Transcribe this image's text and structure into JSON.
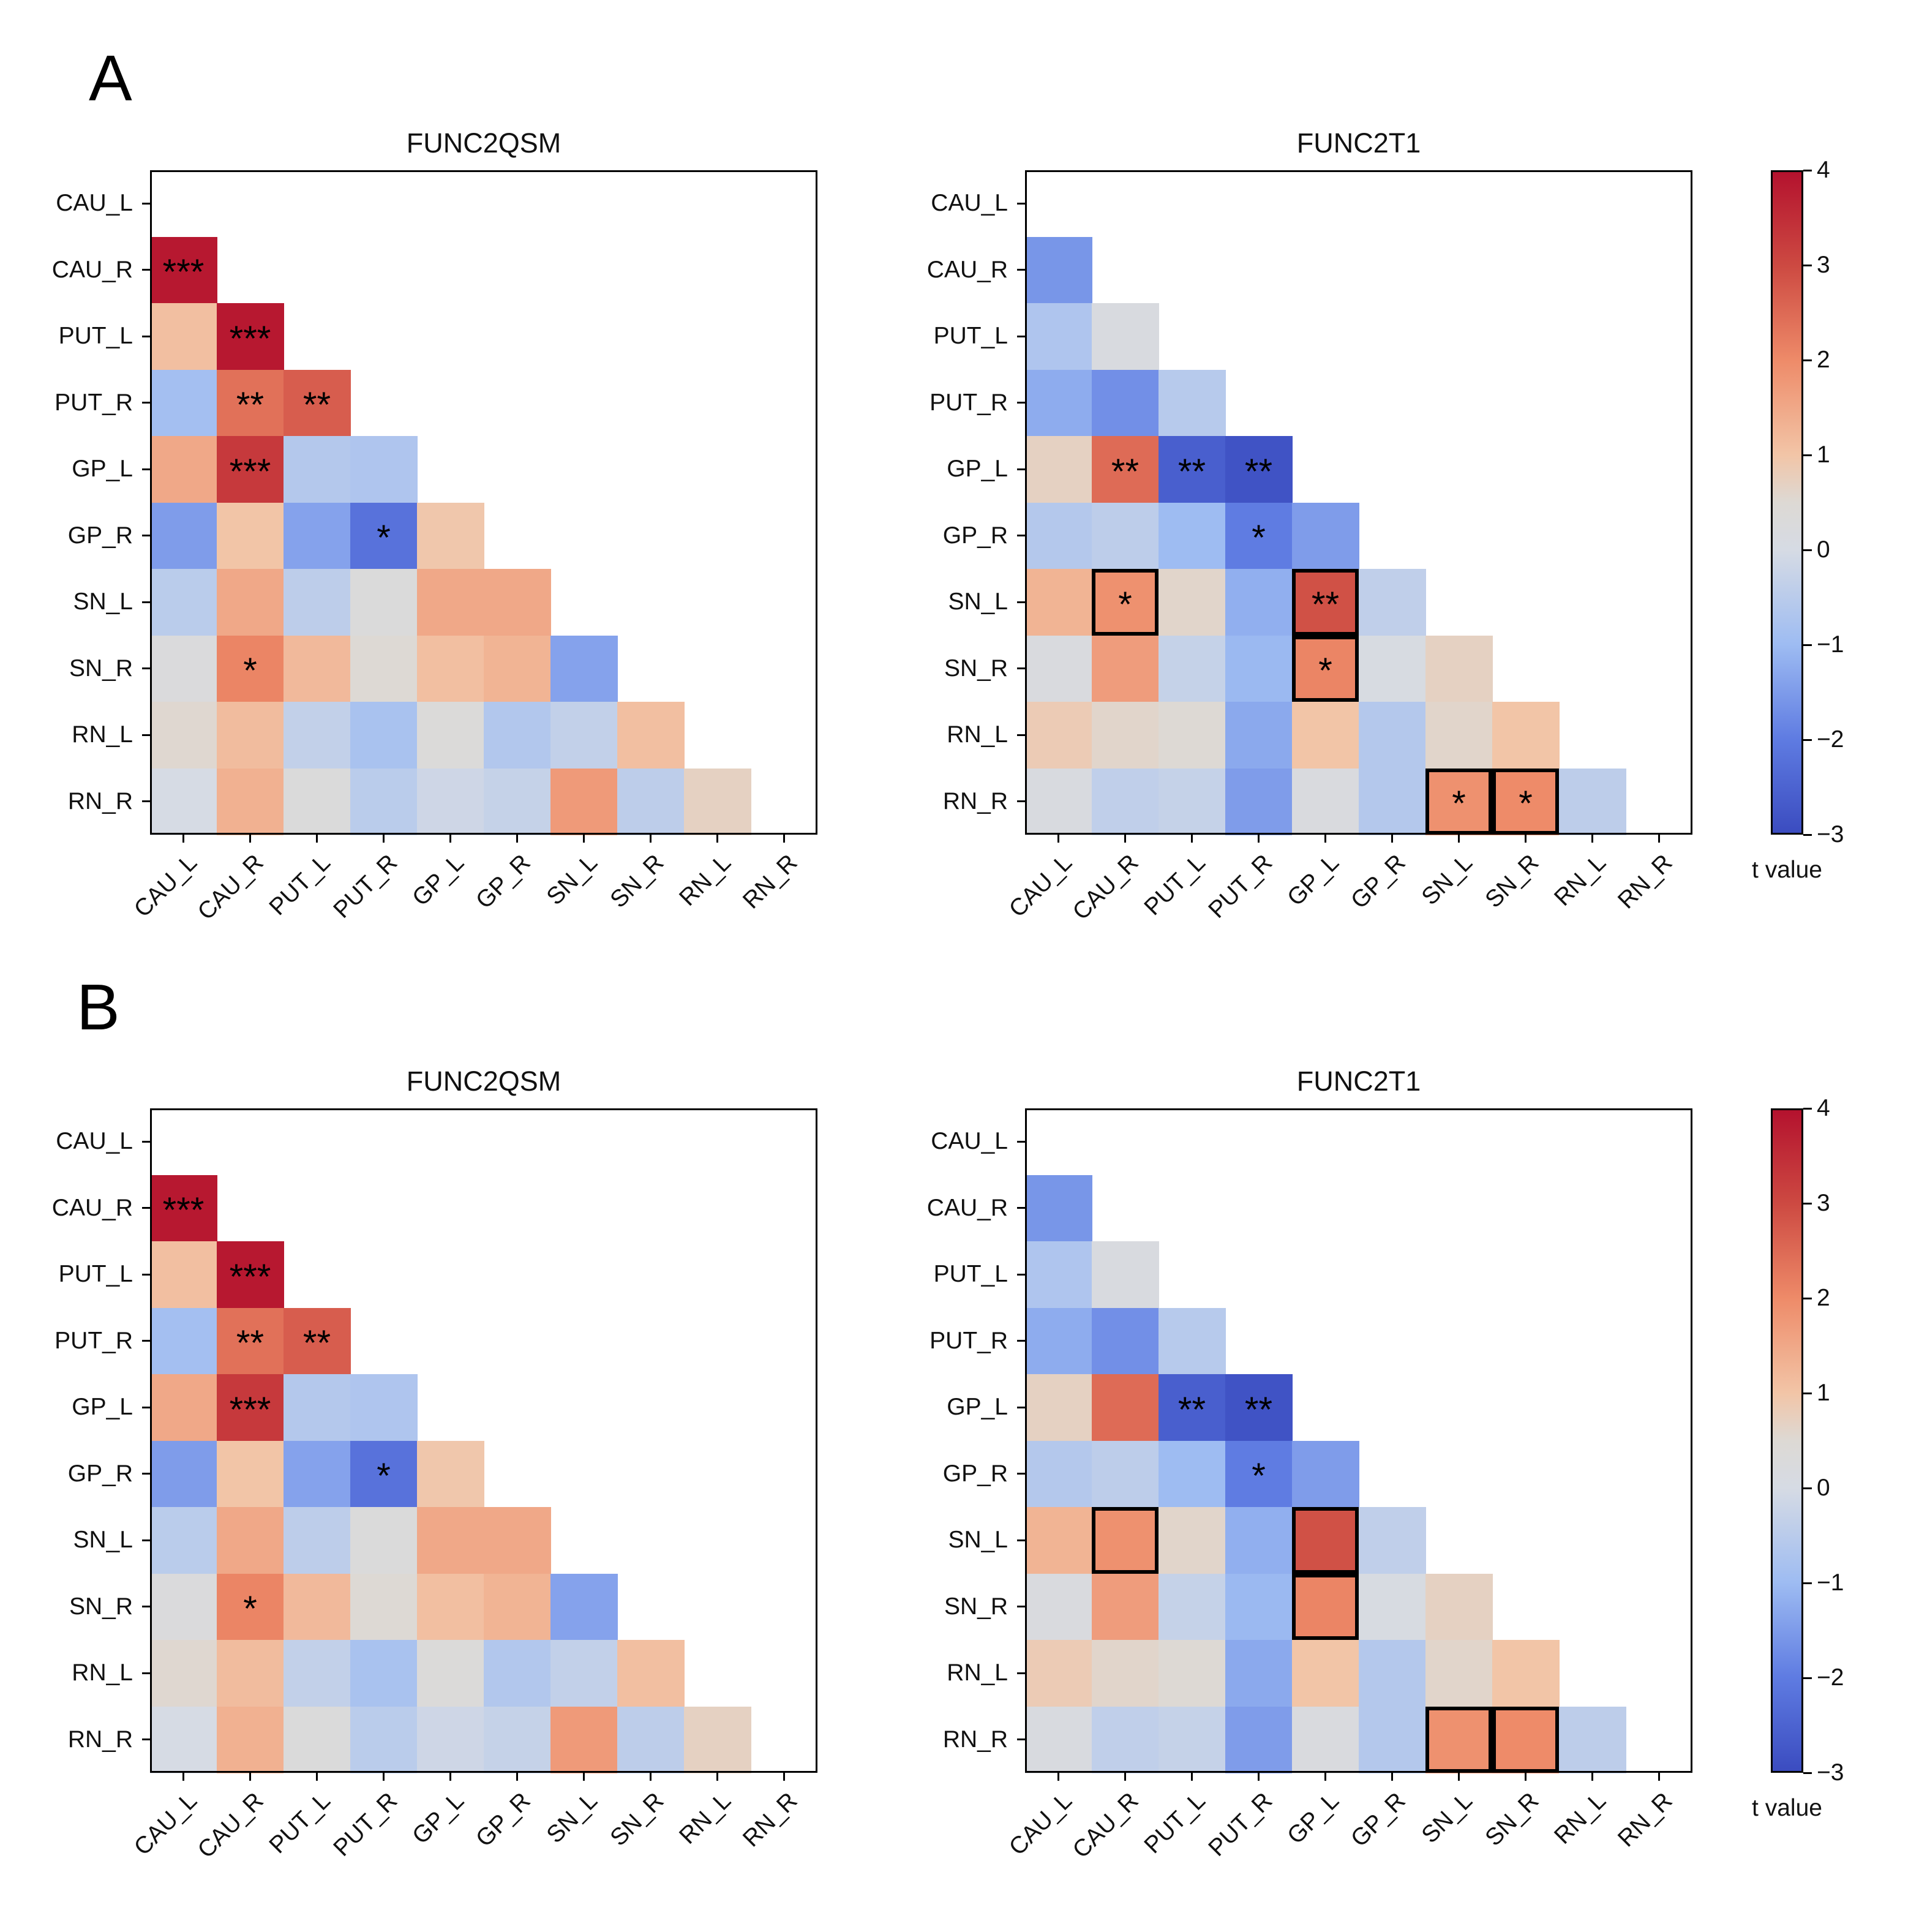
{
  "section_a_label": "A",
  "section_b_label": "B",
  "background_color": "#ffffff",
  "colormap": {
    "description": "coolwarm diverging blue-gray-red",
    "anchors": [
      [
        -3,
        "#3b4cc0"
      ],
      [
        -2,
        "#5f7ce2"
      ],
      [
        -1,
        "#9ebcf2"
      ],
      [
        0,
        "#d6dbe4"
      ],
      [
        0.5,
        "#ddd9d4"
      ],
      [
        1,
        "#f2c5a7"
      ],
      [
        2,
        "#ee8b69"
      ],
      [
        3,
        "#cd4a42"
      ],
      [
        4,
        "#b4122e"
      ]
    ]
  },
  "chart_data": [
    {
      "id": "A-FUNC2QSM",
      "section": "A",
      "type": "heatmap",
      "title": "FUNC2QSM",
      "triangle": "lower",
      "x_labels": [
        "CAU_L",
        "CAU_R",
        "PUT_L",
        "PUT_R",
        "GP_L",
        "GP_R",
        "SN_L",
        "SN_R",
        "RN_L",
        "RN_R"
      ],
      "y_labels": [
        "CAU_L",
        "CAU_R",
        "PUT_L",
        "PUT_R",
        "GP_L",
        "GP_R",
        "SN_L",
        "SN_R",
        "RN_L",
        "RN_R"
      ],
      "colorbar": {
        "label": "t value",
        "ticks": [
          "4",
          "3",
          "2",
          "1",
          "0",
          "−1",
          "−2",
          "−3"
        ],
        "vmin": -3,
        "vmax": 4
      },
      "values": [
        [
          null,
          null,
          null,
          null,
          null,
          null,
          null,
          null,
          null,
          null
        ],
        [
          3.9,
          null,
          null,
          null,
          null,
          null,
          null,
          null,
          null,
          null
        ],
        [
          1.1,
          3.9,
          null,
          null,
          null,
          null,
          null,
          null,
          null,
          null
        ],
        [
          -0.9,
          2.4,
          2.7,
          null,
          null,
          null,
          null,
          null,
          null,
          null
        ],
        [
          1.5,
          3.3,
          -0.6,
          -0.7,
          null,
          null,
          null,
          null,
          null,
          null
        ],
        [
          -1.5,
          1.0,
          -1.4,
          -2.2,
          0.95,
          null,
          null,
          null,
          null,
          null
        ],
        [
          -0.5,
          1.5,
          -0.45,
          0.3,
          1.5,
          1.5,
          null,
          null,
          null,
          null
        ],
        [
          0.25,
          2.1,
          1.2,
          0.5,
          1.1,
          1.3,
          -1.4,
          null,
          null,
          null
        ],
        [
          0.55,
          1.15,
          -0.35,
          -0.8,
          0.35,
          -0.65,
          -0.35,
          1.1,
          null,
          null
        ],
        [
          0.0,
          1.35,
          0.3,
          -0.5,
          -0.15,
          -0.3,
          1.75,
          -0.45,
          0.7,
          null
        ]
      ],
      "annotations": [
        {
          "row": 1,
          "col": 0,
          "text": "***",
          "boxed": false
        },
        {
          "row": 2,
          "col": 1,
          "text": "***",
          "boxed": false
        },
        {
          "row": 3,
          "col": 1,
          "text": "**",
          "boxed": false
        },
        {
          "row": 3,
          "col": 2,
          "text": "**",
          "boxed": false
        },
        {
          "row": 4,
          "col": 1,
          "text": "***",
          "boxed": false
        },
        {
          "row": 5,
          "col": 3,
          "text": "*",
          "boxed": false
        },
        {
          "row": 7,
          "col": 1,
          "text": "*",
          "boxed": false
        }
      ]
    },
    {
      "id": "A-FUNC2T1",
      "section": "A",
      "type": "heatmap",
      "title": "FUNC2T1",
      "triangle": "lower",
      "x_labels": [
        "CAU_L",
        "CAU_R",
        "PUT_L",
        "PUT_R",
        "GP_L",
        "GP_R",
        "SN_L",
        "SN_R",
        "RN_L",
        "RN_R"
      ],
      "y_labels": [
        "CAU_L",
        "CAU_R",
        "PUT_L",
        "PUT_R",
        "GP_L",
        "GP_R",
        "SN_L",
        "SN_R",
        "RN_L",
        "RN_R"
      ],
      "colorbar": {
        "label": "t value",
        "ticks": [
          "4",
          "3",
          "2",
          "1",
          "0",
          "−1",
          "−2",
          "−3"
        ],
        "vmin": -3,
        "vmax": 4
      },
      "values": [
        [
          null,
          null,
          null,
          null,
          null,
          null,
          null,
          null,
          null,
          null
        ],
        [
          -1.6,
          null,
          null,
          null,
          null,
          null,
          null,
          null,
          null,
          null
        ],
        [
          -0.7,
          0.15,
          null,
          null,
          null,
          null,
          null,
          null,
          null,
          null
        ],
        [
          -1.25,
          -1.7,
          -0.55,
          null,
          null,
          null,
          null,
          null,
          null,
          null
        ],
        [
          0.7,
          2.5,
          -2.6,
          -2.85,
          null,
          null,
          null,
          null,
          null,
          null
        ],
        [
          -0.6,
          -0.45,
          -1.0,
          -2.0,
          -1.5,
          null,
          null,
          null,
          null,
          null
        ],
        [
          1.3,
          1.9,
          0.6,
          -1.2,
          2.9,
          -0.4,
          null,
          null,
          null,
          null
        ],
        [
          0.2,
          1.7,
          -0.3,
          -1.05,
          2.1,
          0.1,
          0.7,
          null,
          null,
          null
        ],
        [
          0.85,
          0.6,
          0.5,
          -1.3,
          1.0,
          -0.6,
          0.6,
          1.0,
          null,
          null
        ],
        [
          0.15,
          -0.4,
          -0.3,
          -1.5,
          0.2,
          -0.6,
          1.9,
          2.0,
          -0.45,
          null
        ]
      ],
      "annotations": [
        {
          "row": 4,
          "col": 1,
          "text": "**",
          "boxed": false
        },
        {
          "row": 4,
          "col": 2,
          "text": "**",
          "boxed": false
        },
        {
          "row": 4,
          "col": 3,
          "text": "**",
          "boxed": false
        },
        {
          "row": 5,
          "col": 3,
          "text": "*",
          "boxed": false
        },
        {
          "row": 6,
          "col": 1,
          "text": "*",
          "boxed": true
        },
        {
          "row": 6,
          "col": 4,
          "text": "**",
          "boxed": true
        },
        {
          "row": 7,
          "col": 4,
          "text": "*",
          "boxed": true
        },
        {
          "row": 9,
          "col": 6,
          "text": "*",
          "boxed": true
        },
        {
          "row": 9,
          "col": 7,
          "text": "*",
          "boxed": true
        }
      ]
    },
    {
      "id": "B-FUNC2QSM",
      "section": "B",
      "type": "heatmap",
      "title": "FUNC2QSM",
      "triangle": "lower",
      "x_labels": [
        "CAU_L",
        "CAU_R",
        "PUT_L",
        "PUT_R",
        "GP_L",
        "GP_R",
        "SN_L",
        "SN_R",
        "RN_L",
        "RN_R"
      ],
      "y_labels": [
        "CAU_L",
        "CAU_R",
        "PUT_L",
        "PUT_R",
        "GP_L",
        "GP_R",
        "SN_L",
        "SN_R",
        "RN_L",
        "RN_R"
      ],
      "colorbar": {
        "label": "t value",
        "ticks": [
          "4",
          "3",
          "2",
          "1",
          "0",
          "−1",
          "−2",
          "−3"
        ],
        "vmin": -3,
        "vmax": 4
      },
      "values": [
        [
          null,
          null,
          null,
          null,
          null,
          null,
          null,
          null,
          null,
          null
        ],
        [
          3.9,
          null,
          null,
          null,
          null,
          null,
          null,
          null,
          null,
          null
        ],
        [
          1.1,
          3.9,
          null,
          null,
          null,
          null,
          null,
          null,
          null,
          null
        ],
        [
          -0.9,
          2.4,
          2.7,
          null,
          null,
          null,
          null,
          null,
          null,
          null
        ],
        [
          1.5,
          3.3,
          -0.6,
          -0.7,
          null,
          null,
          null,
          null,
          null,
          null
        ],
        [
          -1.5,
          1.0,
          -1.4,
          -2.2,
          0.95,
          null,
          null,
          null,
          null,
          null
        ],
        [
          -0.5,
          1.5,
          -0.45,
          0.3,
          1.5,
          1.5,
          null,
          null,
          null,
          null
        ],
        [
          0.25,
          2.1,
          1.2,
          0.5,
          1.1,
          1.3,
          -1.4,
          null,
          null,
          null
        ],
        [
          0.55,
          1.15,
          -0.35,
          -0.8,
          0.35,
          -0.65,
          -0.35,
          1.1,
          null,
          null
        ],
        [
          0.0,
          1.35,
          0.3,
          -0.5,
          -0.15,
          -0.3,
          1.75,
          -0.45,
          0.7,
          null
        ]
      ],
      "annotations": [
        {
          "row": 1,
          "col": 0,
          "text": "***",
          "boxed": false
        },
        {
          "row": 2,
          "col": 1,
          "text": "***",
          "boxed": false
        },
        {
          "row": 3,
          "col": 1,
          "text": "**",
          "boxed": false
        },
        {
          "row": 3,
          "col": 2,
          "text": "**",
          "boxed": false
        },
        {
          "row": 4,
          "col": 1,
          "text": "***",
          "boxed": false
        },
        {
          "row": 5,
          "col": 3,
          "text": "*",
          "boxed": false
        },
        {
          "row": 7,
          "col": 1,
          "text": "*",
          "boxed": false
        }
      ]
    },
    {
      "id": "B-FUNC2T1",
      "section": "B",
      "type": "heatmap",
      "title": "FUNC2T1",
      "triangle": "lower",
      "x_labels": [
        "CAU_L",
        "CAU_R",
        "PUT_L",
        "PUT_R",
        "GP_L",
        "GP_R",
        "SN_L",
        "SN_R",
        "RN_L",
        "RN_R"
      ],
      "y_labels": [
        "CAU_L",
        "CAU_R",
        "PUT_L",
        "PUT_R",
        "GP_L",
        "GP_R",
        "SN_L",
        "SN_R",
        "RN_L",
        "RN_R"
      ],
      "colorbar": {
        "label": "t value",
        "ticks": [
          "4",
          "3",
          "2",
          "1",
          "0",
          "−1",
          "−2",
          "−3"
        ],
        "vmin": -3,
        "vmax": 4
      },
      "values": [
        [
          null,
          null,
          null,
          null,
          null,
          null,
          null,
          null,
          null,
          null
        ],
        [
          -1.6,
          null,
          null,
          null,
          null,
          null,
          null,
          null,
          null,
          null
        ],
        [
          -0.7,
          0.15,
          null,
          null,
          null,
          null,
          null,
          null,
          null,
          null
        ],
        [
          -1.25,
          -1.7,
          -0.55,
          null,
          null,
          null,
          null,
          null,
          null,
          null
        ],
        [
          0.7,
          2.5,
          -2.6,
          -2.85,
          null,
          null,
          null,
          null,
          null,
          null
        ],
        [
          -0.6,
          -0.45,
          -1.0,
          -2.0,
          -1.5,
          null,
          null,
          null,
          null,
          null
        ],
        [
          1.3,
          1.9,
          0.6,
          -1.2,
          2.9,
          -0.4,
          null,
          null,
          null,
          null
        ],
        [
          0.2,
          1.7,
          -0.3,
          -1.05,
          2.1,
          0.1,
          0.7,
          null,
          null,
          null
        ],
        [
          0.85,
          0.6,
          0.5,
          -1.3,
          1.0,
          -0.6,
          0.6,
          1.0,
          null,
          null
        ],
        [
          0.15,
          -0.4,
          -0.3,
          -1.5,
          0.2,
          -0.6,
          1.9,
          2.0,
          -0.45,
          null
        ]
      ],
      "annotations": [
        {
          "row": 4,
          "col": 2,
          "text": "**",
          "boxed": false
        },
        {
          "row": 4,
          "col": 3,
          "text": "**",
          "boxed": false
        },
        {
          "row": 5,
          "col": 3,
          "text": "*",
          "boxed": false
        },
        {
          "row": 6,
          "col": 1,
          "text": "",
          "boxed": true
        },
        {
          "row": 6,
          "col": 4,
          "text": "",
          "boxed": true
        },
        {
          "row": 7,
          "col": 4,
          "text": "",
          "boxed": true
        },
        {
          "row": 9,
          "col": 6,
          "text": "",
          "boxed": true
        },
        {
          "row": 9,
          "col": 7,
          "text": "",
          "boxed": true
        }
      ]
    }
  ]
}
